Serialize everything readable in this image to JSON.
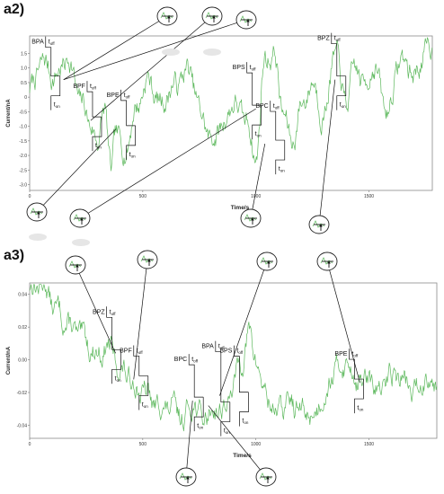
{
  "chart_data": [
    {
      "type": "line",
      "panel_label": "a2)",
      "xlabel": "Time/s",
      "ylabel": "Current/nA",
      "xlim": [
        0,
        1780
      ],
      "ylim": [
        -3.2,
        2.1
      ],
      "xticks": [
        0,
        500,
        1000,
        1500
      ],
      "yticks": [
        -3.0,
        -2.5,
        -2.0,
        -1.5,
        -1.0,
        -0.5,
        0,
        0.5,
        1.0,
        1.5
      ],
      "ytick_labels": [
        "-3.0",
        "-2.5",
        "-2.0",
        "-1.5",
        "-1.0",
        "-0.5",
        "0",
        "0.5",
        "1.0",
        "1.5"
      ],
      "series_color": "#5cb85c",
      "seed": 7,
      "anchors": [
        [
          0,
          0.3
        ],
        [
          60,
          1.2
        ],
        [
          110,
          0.7
        ],
        [
          170,
          1.3
        ],
        [
          230,
          -0.2
        ],
        [
          270,
          -0.9
        ],
        [
          300,
          -1.6
        ],
        [
          330,
          -0.3
        ],
        [
          360,
          -2.6
        ],
        [
          380,
          -1.2
        ],
        [
          420,
          -1.9
        ],
        [
          470,
          -0.4
        ],
        [
          520,
          0.6
        ],
        [
          580,
          -0.2
        ],
        [
          640,
          0.4
        ],
        [
          700,
          0.9
        ],
        [
          760,
          -0.6
        ],
        [
          800,
          -1.5
        ],
        [
          850,
          -1.0
        ],
        [
          900,
          -0.2
        ],
        [
          960,
          -0.8
        ],
        [
          1000,
          -2.1
        ],
        [
          1040,
          1.3
        ],
        [
          1080,
          1.5
        ],
        [
          1120,
          -0.5
        ],
        [
          1160,
          -1.6
        ],
        [
          1200,
          -0.3
        ],
        [
          1250,
          0.5
        ],
        [
          1300,
          -0.6
        ],
        [
          1350,
          1.5
        ],
        [
          1400,
          -0.2
        ],
        [
          1440,
          1.0
        ],
        [
          1480,
          0.4
        ],
        [
          1520,
          1.1
        ],
        [
          1580,
          -0.5
        ],
        [
          1640,
          1.3
        ],
        [
          1700,
          0.8
        ],
        [
          1760,
          1.6
        ]
      ],
      "events": [
        {
          "label": "BPA",
          "t_off": "t",
          "t_off_sub": "off",
          "t_on": "t",
          "t_on_sub": "on",
          "x": 150,
          "y": 0.6
        },
        {
          "label": "BPF",
          "t_off": "t",
          "t_off_sub": "off",
          "t_on": "t",
          "t_on_sub": "on",
          "x": 270,
          "y": -0.8
        },
        {
          "label": "BPE",
          "t_off": "t",
          "t_off_sub": "off",
          "t_on": "t",
          "t_on_sub": "on",
          "x": 380,
          "y": -1.1
        },
        {
          "label": "BPS",
          "t_off": "t",
          "t_off_sub": "off",
          "t_on": "t",
          "t_on_sub": "on",
          "x": 1000,
          "y": -0.4
        },
        {
          "label": "BPC",
          "t_off": "t",
          "t_off_sub": "off",
          "t_on": "t",
          "t_on_sub": "on",
          "x": 1040,
          "y": -1.6
        },
        {
          "label": "BPZ",
          "t_off": "t",
          "t_off_sub": "off",
          "t_on": "t",
          "t_on_sub": "on",
          "x": 1350,
          "y": 0.6
        }
      ]
    },
    {
      "type": "line",
      "panel_label": "a3)",
      "xlabel": "Time/s",
      "ylabel": "Current/nA",
      "xlim": [
        0,
        1800
      ],
      "ylim": [
        -0.048,
        0.047
      ],
      "xticks": [
        0,
        500,
        1000,
        1500
      ],
      "yticks": [
        -0.04,
        -0.02,
        0.0,
        0.02,
        0.04
      ],
      "ytick_labels": [
        "-0.04",
        "-0.02",
        "0.00",
        "0.02",
        "0.04"
      ],
      "series_color": "#5cb85c",
      "seed": 13,
      "anchors": [
        [
          0,
          0.045
        ],
        [
          60,
          0.046
        ],
        [
          120,
          0.03
        ],
        [
          180,
          0.02
        ],
        [
          240,
          0.012
        ],
        [
          300,
          0.004
        ],
        [
          350,
          0.008
        ],
        [
          400,
          -0.006
        ],
        [
          450,
          -0.012
        ],
        [
          500,
          -0.02
        ],
        [
          560,
          -0.028
        ],
        [
          620,
          -0.03
        ],
        [
          680,
          -0.035
        ],
        [
          720,
          -0.025
        ],
        [
          760,
          -0.036
        ],
        [
          820,
          -0.03
        ],
        [
          880,
          -0.028
        ],
        [
          900,
          -0.015
        ],
        [
          930,
          -0.002
        ],
        [
          970,
          0.015
        ],
        [
          1000,
          0.0
        ],
        [
          1040,
          -0.02
        ],
        [
          1080,
          -0.03
        ],
        [
          1120,
          -0.03
        ],
        [
          1150,
          -0.025
        ],
        [
          1200,
          -0.032
        ],
        [
          1260,
          -0.033
        ],
        [
          1300,
          -0.02
        ],
        [
          1350,
          -0.006
        ],
        [
          1400,
          -0.002
        ],
        [
          1450,
          -0.012
        ],
        [
          1500,
          -0.014
        ],
        [
          1550,
          -0.02
        ],
        [
          1600,
          -0.008
        ],
        [
          1650,
          -0.012
        ],
        [
          1700,
          -0.02
        ],
        [
          1760,
          -0.01
        ],
        [
          1800,
          -0.012
        ]
      ],
      "events": [
        {
          "label": "BPZ",
          "t_off": "t",
          "t_off_sub": "off",
          "t_on": "t",
          "t_on_sub": "on",
          "x": 380,
          "y": 0.004
        },
        {
          "label": "BPF",
          "t_off": "t",
          "t_off_sub": "off",
          "t_on": "t",
          "t_on_sub": "on",
          "x": 460,
          "y": -0.012
        },
        {
          "label": "BPC",
          "t_off": "t",
          "t_off_sub": "off",
          "t_on": "t",
          "t_on_sub": "on",
          "x": 720,
          "y": -0.025
        },
        {
          "label": "BPA",
          "t_off": "t",
          "t_off_sub": "off",
          "t_on": "t",
          "t_on_sub": "on",
          "x": 790,
          "y": -0.028
        },
        {
          "label": "BPS",
          "t_off": "t",
          "t_off_sub": "off",
          "t_on": "t",
          "t_on_sub": "on",
          "x": 840,
          "y": -0.022
        },
        {
          "label": "BPE",
          "t_off": "t",
          "t_off_sub": "off",
          "t_on": "t",
          "t_on_sub": "on",
          "x": 1460,
          "y": -0.014
        }
      ]
    }
  ]
}
